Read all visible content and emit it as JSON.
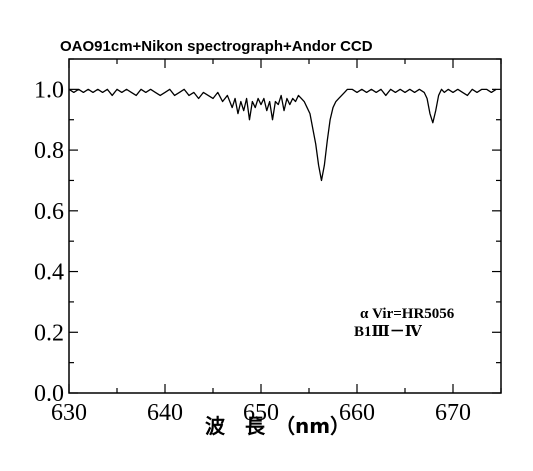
{
  "chart_data": {
    "type": "line",
    "title": "OAO91cm+Nikon spectrograph+Andor CCD",
    "xlabel": "波　長　（nm）",
    "ylabel": "",
    "xlim": [
      630,
      675
    ],
    "ylim": [
      0.0,
      1.1
    ],
    "grid": false,
    "x_ticks": [
      630,
      640,
      650,
      660,
      670
    ],
    "x_tick_labels": [
      "630",
      "640",
      "650",
      "660",
      "670"
    ],
    "y_ticks": [
      0.0,
      0.2,
      0.4,
      0.6,
      0.8,
      1.0
    ],
    "y_tick_labels": [
      "0.0",
      "0.2",
      "0.4",
      "0.6",
      "0.8",
      "1.0"
    ],
    "annotations": [
      "α Vir=HR5056",
      "B1Ⅲ－Ⅳ"
    ],
    "series": [
      {
        "x": [
          630.0,
          630.5,
          631.0,
          631.5,
          632.0,
          632.5,
          633.0,
          633.5,
          634.0,
          634.5,
          635.0,
          635.5,
          636.0,
          636.5,
          637.0,
          637.5,
          638.0,
          638.5,
          639.0,
          639.5,
          640.0,
          640.5,
          641.0,
          641.5,
          642.0,
          642.5,
          643.0,
          643.5,
          644.0,
          644.5,
          645.0,
          645.5,
          646.0,
          646.5,
          647.0,
          647.3,
          647.6,
          647.9,
          648.2,
          648.5,
          648.8,
          649.1,
          649.4,
          649.7,
          650.0,
          650.3,
          650.6,
          650.9,
          651.2,
          651.5,
          651.8,
          652.1,
          652.4,
          652.7,
          653.0,
          653.3,
          653.6,
          653.9,
          654.2,
          654.5,
          654.8,
          655.1,
          655.4,
          655.7,
          656.0,
          656.3,
          656.6,
          656.9,
          657.2,
          657.5,
          657.8,
          658.1,
          658.4,
          658.7,
          659.0,
          659.5,
          660.0,
          660.5,
          661.0,
          661.5,
          662.0,
          662.5,
          663.0,
          663.5,
          664.0,
          664.5,
          665.0,
          665.5,
          666.0,
          666.5,
          667.0,
          667.3,
          667.6,
          667.9,
          668.2,
          668.5,
          668.8,
          669.1,
          669.5,
          670.0,
          670.5,
          671.0,
          671.5,
          672.0,
          672.5,
          673.0,
          673.5,
          674.0,
          674.5
        ],
        "values": [
          1.0,
          0.99,
          1.0,
          0.99,
          1.0,
          0.99,
          1.0,
          0.99,
          1.0,
          0.98,
          1.0,
          0.99,
          1.0,
          0.99,
          0.98,
          1.0,
          0.99,
          1.0,
          0.99,
          0.98,
          0.99,
          1.0,
          0.98,
          0.99,
          1.0,
          0.98,
          0.99,
          0.97,
          0.99,
          0.98,
          0.97,
          0.99,
          0.96,
          0.98,
          0.94,
          0.97,
          0.92,
          0.96,
          0.93,
          0.97,
          0.9,
          0.96,
          0.94,
          0.97,
          0.95,
          0.97,
          0.93,
          0.96,
          0.9,
          0.96,
          0.95,
          0.98,
          0.93,
          0.97,
          0.95,
          0.97,
          0.96,
          0.98,
          0.97,
          0.96,
          0.94,
          0.92,
          0.87,
          0.82,
          0.75,
          0.7,
          0.75,
          0.83,
          0.9,
          0.94,
          0.96,
          0.97,
          0.98,
          0.99,
          1.0,
          1.0,
          0.99,
          1.0,
          0.99,
          1.0,
          0.99,
          1.0,
          0.98,
          1.0,
          0.99,
          1.0,
          0.99,
          1.0,
          0.99,
          1.0,
          0.99,
          0.97,
          0.92,
          0.89,
          0.93,
          0.98,
          1.0,
          0.99,
          1.0,
          0.99,
          1.0,
          0.99,
          0.98,
          1.0,
          0.99,
          1.0,
          1.0,
          0.99,
          1.0
        ]
      }
    ]
  }
}
